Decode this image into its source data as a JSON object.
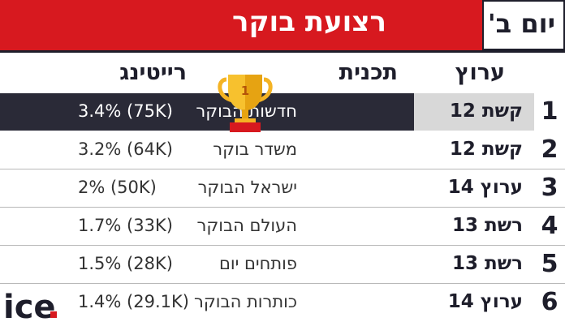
{
  "header": {
    "title": "רצועת בוקר",
    "day": "יום ב'"
  },
  "columns": {
    "channel": "ערוץ",
    "program": "תכנית",
    "rating": "רייטינג"
  },
  "rows": [
    {
      "rank": "1",
      "channel": "קשת 12",
      "program": "חדשות הבוקר",
      "rating": "3.4% (75K)"
    },
    {
      "rank": "2",
      "channel": "קשת 12",
      "program": "משדר בוקר",
      "rating": "3.2% (64K)"
    },
    {
      "rank": "3",
      "channel": "ערוץ 14",
      "program": "ישראל הבוקר",
      "rating": "2% (50K)"
    },
    {
      "rank": "4",
      "channel": "רשת 13",
      "program": "העולם הבוקר",
      "rating": "1.7% (33K)"
    },
    {
      "rank": "5",
      "channel": "רשת 13",
      "program": "פותחים יום",
      "rating": "1.5% (28K)"
    },
    {
      "rank": "6",
      "channel": "ערוץ 14",
      "program": "כותרות הבוקר",
      "rating": "1.4% (29.1K)"
    }
  ],
  "trophy": {
    "icon": "trophy-icon",
    "label": "1"
  },
  "logo": {
    "text": "ice",
    "icon": "ice-logo"
  },
  "colors": {
    "accent": "#d7191f",
    "dark": "#2a2a37"
  }
}
